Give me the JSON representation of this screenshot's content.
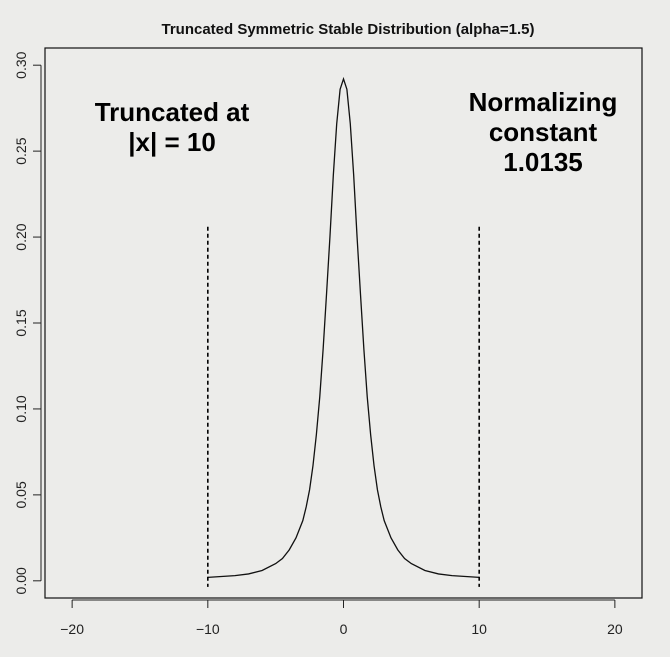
{
  "chart_data": {
    "type": "line",
    "title": "Truncated Symmetric Stable Distribution (alpha=1.5)",
    "xlabel": "",
    "ylabel": "",
    "xlim": [
      -22,
      22
    ],
    "ylim": [
      -0.01,
      0.31
    ],
    "x_ticks": [
      -20,
      -10,
      0,
      10,
      20
    ],
    "x_tick_labels": [
      "−20",
      "−10",
      "0",
      "10",
      "20"
    ],
    "y_ticks": [
      0.0,
      0.05,
      0.1,
      0.15,
      0.2,
      0.25,
      0.3
    ],
    "y_tick_labels": [
      "0.00",
      "0.05",
      "0.10",
      "0.15",
      "0.20",
      "0.25",
      "0.30"
    ],
    "grid": false,
    "series": [
      {
        "x": [
          -10,
          -9,
          -8,
          -7,
          -6,
          -5,
          -4.5,
          -4,
          -3.5,
          -3,
          -2.75,
          -2.5,
          -2.25,
          -2,
          -1.75,
          -1.5,
          -1.25,
          -1,
          -0.75,
          -0.5,
          -0.25,
          0,
          0.25,
          0.5,
          0.75,
          1,
          1.25,
          1.5,
          1.75,
          2,
          2.25,
          2.5,
          2.75,
          3,
          3.5,
          4,
          4.5,
          5,
          6,
          7,
          8,
          9,
          10
        ],
        "y": [
          0.002,
          0.0025,
          0.003,
          0.004,
          0.006,
          0.01,
          0.013,
          0.018,
          0.025,
          0.035,
          0.043,
          0.053,
          0.067,
          0.085,
          0.107,
          0.135,
          0.167,
          0.2,
          0.236,
          0.266,
          0.286,
          0.292,
          0.286,
          0.266,
          0.236,
          0.2,
          0.167,
          0.135,
          0.107,
          0.085,
          0.067,
          0.053,
          0.043,
          0.035,
          0.025,
          0.018,
          0.013,
          0.01,
          0.006,
          0.004,
          0.003,
          0.0025,
          0.002
        ]
      }
    ],
    "vertical_lines": [
      {
        "x": -10,
        "y_top": 0.206,
        "style": "dashed"
      },
      {
        "x": 10,
        "y_top": 0.206,
        "style": "dashed"
      }
    ],
    "annotations": [
      {
        "lines": [
          "Truncated at",
          "|x| = 10"
        ],
        "position": "top-left"
      },
      {
        "lines": [
          "Normalizing",
          "constant",
          "1.0135"
        ],
        "position": "top-right"
      }
    ]
  }
}
